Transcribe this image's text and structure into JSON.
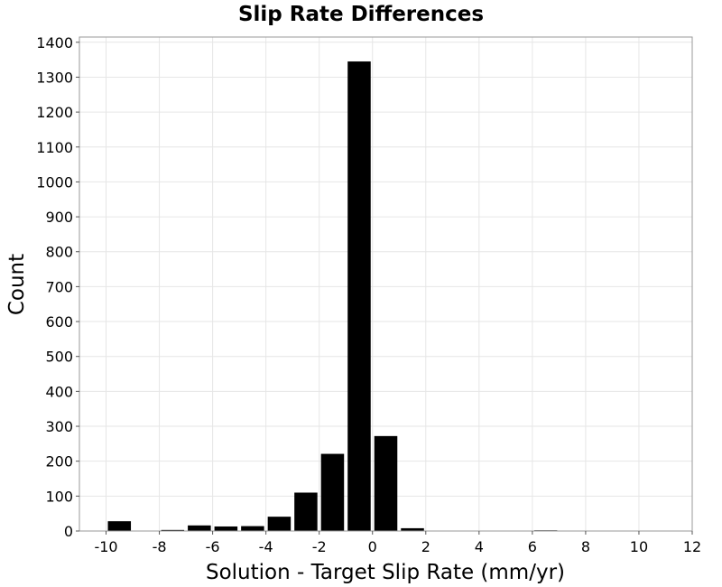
{
  "chart_data": {
    "type": "bar",
    "title": "Slip Rate Differences",
    "xlabel": "Solution - Target Slip Rate (mm/yr)",
    "ylabel": "Count",
    "xlim": [
      -11,
      12
    ],
    "ylim": [
      0,
      1415
    ],
    "x_ticks": [
      -10,
      -8,
      -6,
      -4,
      -2,
      0,
      2,
      4,
      6,
      8,
      10,
      12
    ],
    "x_tick_labels": [
      "-10",
      "-8",
      "-6",
      "-4",
      "-2",
      "0",
      "2",
      "4",
      "6",
      "8",
      "10",
      "12"
    ],
    "y_ticks": [
      0,
      100,
      200,
      300,
      400,
      500,
      600,
      700,
      800,
      900,
      1000,
      1100,
      1200,
      1300,
      1400
    ],
    "y_tick_labels": [
      "0",
      "100",
      "200",
      "300",
      "400",
      "500",
      "600",
      "700",
      "800",
      "900",
      "1000",
      "1100",
      "1200",
      "1300",
      "1400"
    ],
    "bin_width": 1,
    "bins": [
      {
        "x": -9.5,
        "value": 28
      },
      {
        "x": -8.5,
        "value": 0
      },
      {
        "x": -7.5,
        "value": 3
      },
      {
        "x": -6.5,
        "value": 16
      },
      {
        "x": -5.5,
        "value": 13
      },
      {
        "x": -4.5,
        "value": 14
      },
      {
        "x": -3.5,
        "value": 41
      },
      {
        "x": -2.5,
        "value": 110
      },
      {
        "x": -1.5,
        "value": 221
      },
      {
        "x": -0.5,
        "value": 1345
      },
      {
        "x": 0.5,
        "value": 272
      },
      {
        "x": 1.5,
        "value": 8
      },
      {
        "x": 6.5,
        "value": 2
      }
    ],
    "grid": true,
    "bar_color": "#000000",
    "grid_color": "#e6e6e6"
  }
}
